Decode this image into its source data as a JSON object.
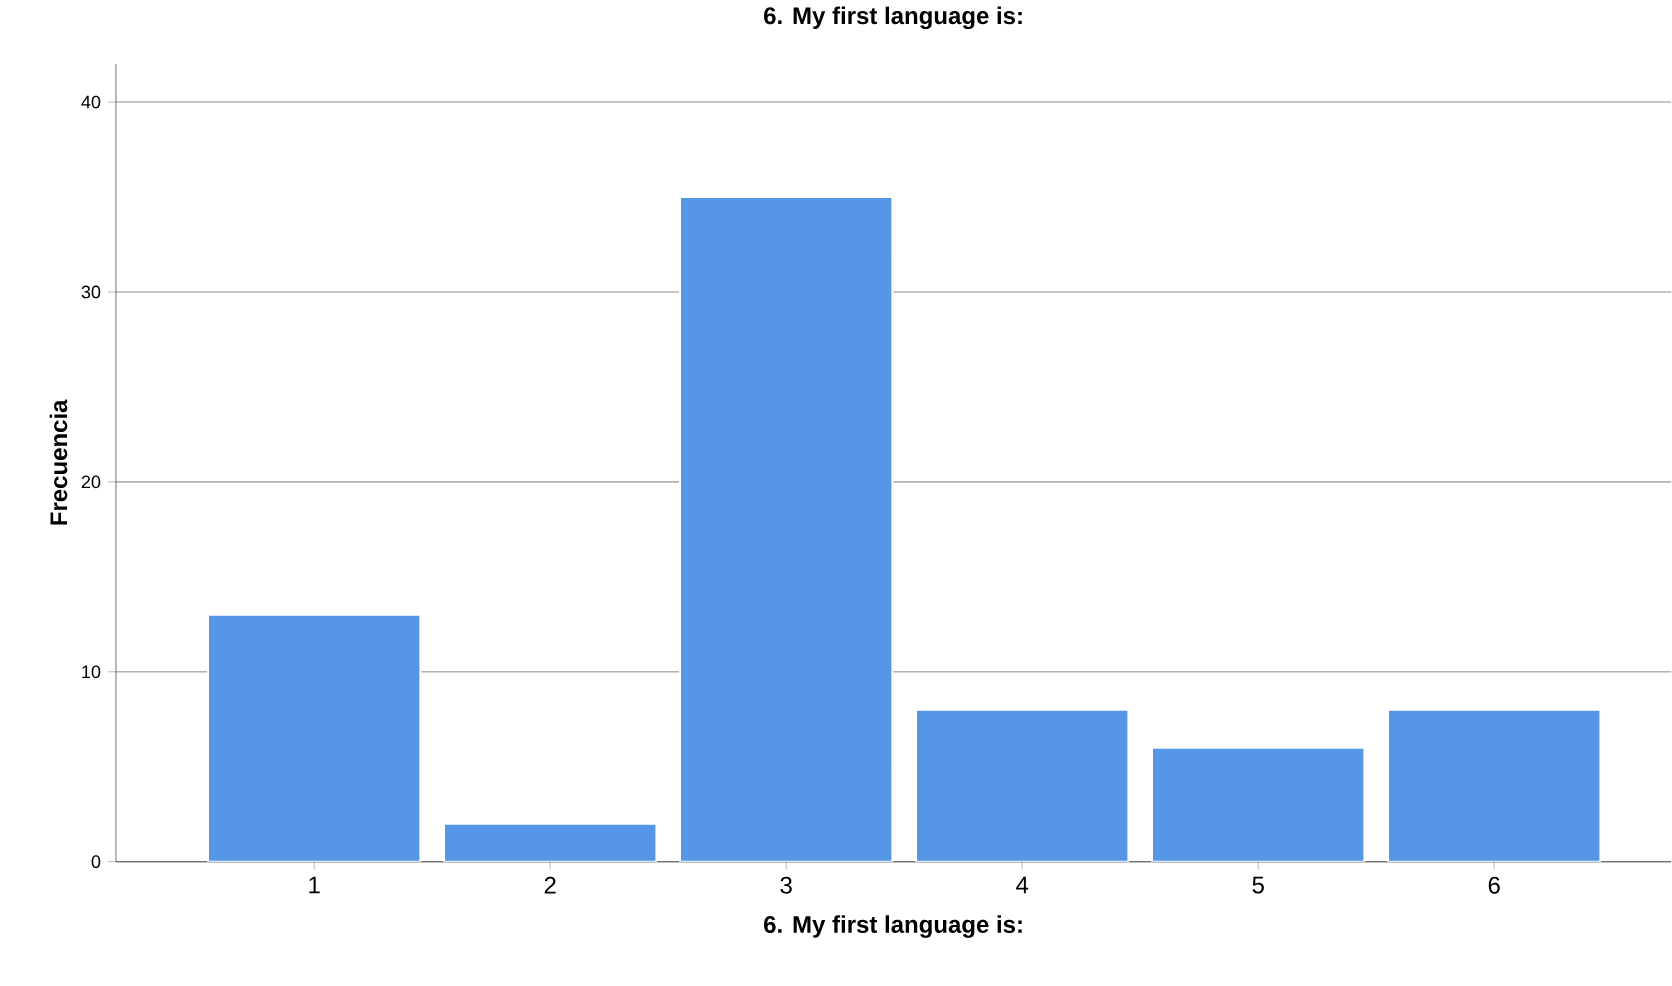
{
  "chart_data": {
    "type": "bar",
    "title": "6.  My first language is:",
    "xlabel": "6.  My first language is:",
    "ylabel": "Frecuencia",
    "categories": [
      "1",
      "2",
      "3",
      "4",
      "5",
      "6"
    ],
    "values": [
      13,
      2,
      35,
      8,
      6,
      8
    ],
    "color": "#5596e6",
    "ylim": [
      0,
      42
    ],
    "yticks": [
      0,
      10,
      20,
      30,
      40
    ],
    "grid": "y"
  }
}
